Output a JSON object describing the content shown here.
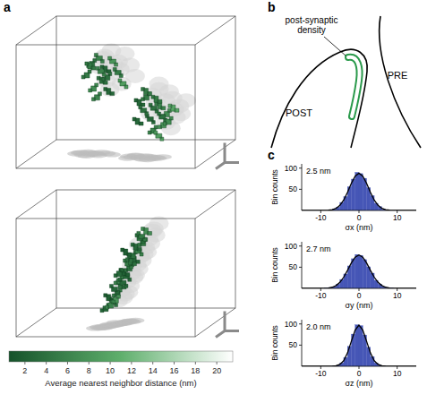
{
  "panel_labels": [
    "a",
    "b",
    "c"
  ],
  "panel_a": {
    "views": [
      {
        "clusters": {
          "x": [
            30,
            34,
            38,
            27,
            42,
            36,
            31,
            45,
            40,
            33,
            48,
            29,
            39,
            35,
            58,
            62,
            66,
            70,
            74,
            64,
            68,
            72,
            60,
            78,
            66,
            71,
            62,
            75,
            69,
            57
          ],
          "y": [
            20,
            15,
            25,
            30,
            18,
            35,
            42,
            28,
            45,
            50,
            38,
            22,
            32,
            27,
            55,
            50,
            60,
            58,
            65,
            70,
            52,
            75,
            62,
            60,
            80,
            68,
            45,
            72,
            85,
            72
          ],
          "nn_distance": [
            4,
            6,
            3,
            5,
            8,
            4,
            7,
            5,
            3,
            6,
            9,
            5,
            4,
            6,
            3,
            5,
            4,
            6,
            7,
            3,
            5,
            8,
            4,
            10,
            6,
            4,
            5,
            7,
            9,
            3
          ]
        }
      },
      {
        "clusters": {
          "x": [
            38,
            42,
            40,
            45,
            43,
            47,
            46,
            50,
            49,
            52,
            51,
            55,
            54,
            57,
            56,
            60,
            58,
            62,
            44,
            48,
            53,
            41,
            59,
            50,
            46
          ],
          "y": [
            88,
            82,
            78,
            74,
            70,
            66,
            62,
            58,
            54,
            50,
            46,
            42,
            38,
            34,
            30,
            26,
            22,
            15,
            80,
            64,
            44,
            85,
            20,
            35,
            55
          ],
          "nn_distance": [
            3,
            4,
            2,
            5,
            3,
            4,
            6,
            3,
            2,
            4,
            5,
            3,
            4,
            6,
            3,
            5,
            4,
            7,
            8,
            3,
            4,
            6,
            5,
            2,
            3
          ]
        }
      }
    ],
    "colorbar": {
      "label": "Average nearest neighbor distance (nm)",
      "range": [
        0.5,
        21.5
      ],
      "ticks": [
        2,
        4,
        6,
        8,
        10,
        12,
        14,
        16,
        18,
        20
      ],
      "colors": [
        "#15522a",
        "#5faf6c",
        "#ffffff"
      ]
    }
  },
  "panel_b": {
    "labels": {
      "psd": "post-synaptic density",
      "post": "POST",
      "pre": "PRE"
    }
  },
  "chart_data": [
    {
      "type": "histogram",
      "annotation": "2.5 nm",
      "x_label": "σx (nm)",
      "y_label": "Bin counts",
      "bins": [
        -15,
        -14,
        -13,
        -12,
        -11,
        -10,
        -9,
        -8,
        -7,
        -6,
        -5,
        -4,
        -3,
        -2,
        -1,
        0,
        1,
        2,
        3,
        4,
        5,
        6,
        7,
        8,
        9,
        10,
        11,
        12,
        13,
        14,
        15
      ],
      "values": [
        0,
        0,
        0,
        0,
        0,
        0,
        0,
        1,
        3,
        8,
        19,
        33,
        56,
        74,
        90,
        87,
        76,
        54,
        35,
        17,
        9,
        2,
        1,
        0,
        0,
        0,
        0,
        0,
        0,
        0
      ],
      "color": "#4656b6",
      "fit": {
        "x": [
          -15,
          -14,
          -13,
          -12,
          -11,
          -10,
          -9,
          -8,
          -7,
          -6,
          -5,
          -4,
          -3,
          -2,
          -1,
          0,
          1,
          2,
          3,
          4,
          5,
          6,
          7,
          8,
          9,
          10,
          11,
          12,
          13,
          14,
          15
        ],
        "values": [
          0,
          0,
          0,
          0,
          0,
          0,
          0.1,
          0.5,
          1.7,
          4.9,
          11.9,
          24.5,
          42.8,
          63.9,
          81.2,
          88,
          81.2,
          63.9,
          42.8,
          24.5,
          11.9,
          4.9,
          1.7,
          0.5,
          0.1,
          0,
          0,
          0,
          0,
          0,
          0
        ],
        "color": "#000000",
        "line_style": "solid"
      },
      "xlim": [
        -15,
        15
      ],
      "ylim": [
        0,
        110
      ],
      "xticks": [
        -10,
        0,
        10
      ],
      "yticks": [
        50,
        100
      ]
    },
    {
      "type": "histogram",
      "annotation": "2.7 nm",
      "x_label": "σy (nm)",
      "y_label": "Bin counts",
      "bins": [
        -15,
        -14,
        -13,
        -12,
        -11,
        -10,
        -9,
        -8,
        -7,
        -6,
        -5,
        -4,
        -3,
        -2,
        -1,
        0,
        1,
        2,
        3,
        4,
        5,
        6,
        7,
        8,
        9,
        10,
        11,
        12,
        13,
        14,
        15
      ],
      "values": [
        0,
        0,
        0,
        0,
        0,
        0,
        1,
        2,
        4,
        10,
        21,
        34,
        53,
        70,
        80,
        78,
        68,
        51,
        36,
        19,
        10,
        4,
        1,
        1,
        0,
        0,
        0,
        0,
        0,
        0
      ],
      "color": "#4656b6",
      "fit": {
        "x": [
          -15,
          -14,
          -13,
          -12,
          -11,
          -10,
          -9,
          -8,
          -7,
          -6,
          -5,
          -4,
          -3,
          -2,
          -1,
          0,
          1,
          2,
          3,
          4,
          5,
          6,
          7,
          8,
          9,
          10,
          11,
          12,
          13,
          14,
          15
        ],
        "values": [
          0,
          0,
          0,
          0,
          0,
          0.1,
          0.3,
          1.0,
          2.7,
          6.7,
          14.2,
          26.4,
          42.6,
          60.1,
          73.8,
          79,
          73.8,
          60.1,
          42.6,
          26.4,
          14.2,
          6.7,
          2.7,
          1.0,
          0.3,
          0.1,
          0,
          0,
          0,
          0,
          0
        ],
        "color": "#000000",
        "line_style": "solid"
      },
      "xlim": [
        -15,
        15
      ],
      "ylim": [
        0,
        110
      ],
      "xticks": [
        -10,
        0,
        10
      ],
      "yticks": [
        50,
        100
      ]
    },
    {
      "type": "histogram",
      "annotation": "2.0 nm",
      "x_label": "σz (nm)",
      "y_label": "Bin counts",
      "bins": [
        -15,
        -14,
        -13,
        -12,
        -11,
        -10,
        -9,
        -8,
        -7,
        -6,
        -5,
        -4,
        -3,
        -2,
        -1,
        0,
        1,
        2,
        3,
        4,
        5,
        6,
        7,
        8,
        9,
        10,
        11,
        12,
        13,
        14,
        15
      ],
      "values": [
        0,
        0,
        0,
        0,
        0,
        0,
        0,
        0,
        1,
        2,
        8,
        21,
        47,
        76,
        98,
        96,
        74,
        45,
        23,
        8,
        2,
        1,
        0,
        0,
        0,
        0,
        0,
        0,
        0,
        0
      ],
      "color": "#4656b6",
      "fit": {
        "x": [
          -15,
          -14,
          -13,
          -12,
          -11,
          -10,
          -9,
          -8,
          -7,
          -6,
          -5,
          -4,
          -3,
          -2,
          -1,
          0,
          1,
          2,
          3,
          4,
          5,
          6,
          7,
          8,
          9,
          10,
          11,
          12,
          13,
          14,
          15
        ],
        "values": [
          0,
          0,
          0,
          0,
          0,
          0,
          0,
          0,
          0.2,
          1.1,
          4.3,
          13.1,
          31.5,
          58.9,
          85.6,
          97,
          85.6,
          58.9,
          31.5,
          13.1,
          4.3,
          1.1,
          0.2,
          0,
          0,
          0,
          0,
          0,
          0,
          0,
          0
        ],
        "color": "#000000",
        "line_style": "solid"
      },
      "xlim": [
        -15,
        15
      ],
      "ylim": [
        0,
        110
      ],
      "xticks": [
        -10,
        0,
        10
      ],
      "yticks": [
        50,
        100
      ]
    }
  ]
}
